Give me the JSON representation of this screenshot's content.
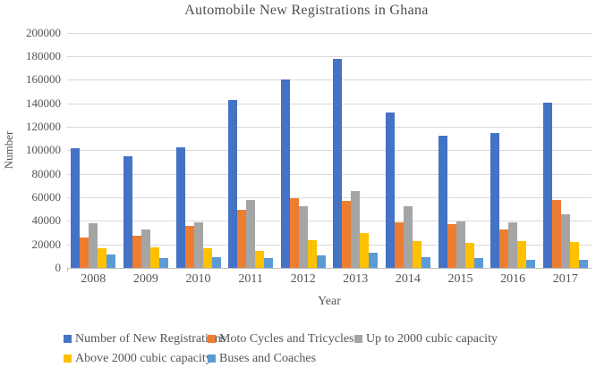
{
  "figure": {
    "title": "Automobile New Registrations in Ghana"
  },
  "chart_data": {
    "type": "bar",
    "title": "Automobile New Registrations in Ghana",
    "xlabel": "Year",
    "ylabel": "Number",
    "ylim": [
      0,
      200000
    ],
    "ytick_step": 20000,
    "grid": true,
    "legend_position": "bottom",
    "categories": [
      "2008",
      "2009",
      "2010",
      "2011",
      "2012",
      "2013",
      "2014",
      "2015",
      "2016",
      "2017"
    ],
    "series": [
      {
        "name": "Number of New Registrations",
        "color": "#4472C4",
        "values": [
          101500,
          94500,
          102500,
          142500,
          160000,
          177500,
          132000,
          112000,
          114500,
          140500
        ]
      },
      {
        "name": "Moto Cycles and Tricycles",
        "color": "#ED7D31",
        "values": [
          25500,
          27500,
          36000,
          49500,
          59500,
          57000,
          38500,
          37000,
          32500,
          57500
        ]
      },
      {
        "name": "Up to 2000 cubic capacity",
        "color": "#A5A5A5",
        "values": [
          38000,
          33000,
          39000,
          57500,
          52500,
          65000,
          52000,
          39500,
          38500,
          45500
        ]
      },
      {
        "name": "Above 2000 cubic capacity",
        "color": "#FFC000",
        "values": [
          16500,
          17500,
          16500,
          14500,
          23500,
          29500,
          22500,
          21000,
          22500,
          22000
        ]
      },
      {
        "name": "Buses and Coaches",
        "color": "#5B9BD5",
        "values": [
          11500,
          8500,
          9000,
          8000,
          11000,
          13000,
          9000,
          8000,
          6500,
          7000
        ]
      }
    ]
  }
}
